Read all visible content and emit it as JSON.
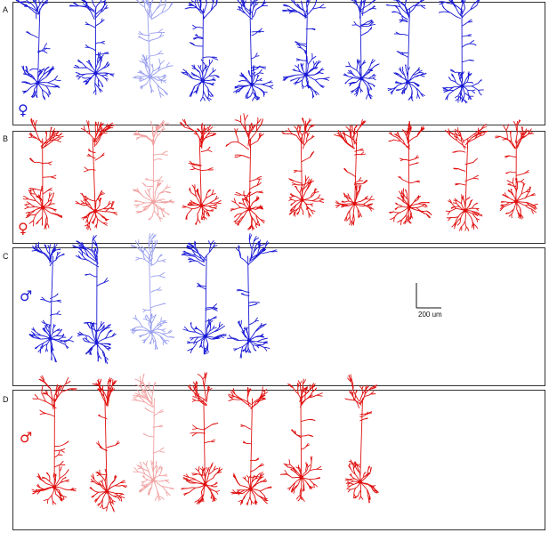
{
  "panels": [
    {
      "letter": "A",
      "symbol": "♀",
      "color": "#1a1ad6",
      "faint": "#9aa0ee",
      "neurons": 9,
      "faint_index": 2
    },
    {
      "letter": "B",
      "symbol": "♀",
      "color": "#e01010",
      "faint": "#f1a0a0",
      "neurons": 10,
      "faint_index": 2
    },
    {
      "letter": "C",
      "symbol": "♂",
      "color": "#1a1ad6",
      "faint": "#9aa0ee",
      "neurons": 5,
      "faint_index": 2
    },
    {
      "letter": "D",
      "symbol": "♂",
      "color": "#e01010",
      "faint": "#f1a0a0",
      "neurons": 7,
      "faint_index": 2
    }
  ],
  "scale": {
    "label": "200 um"
  }
}
